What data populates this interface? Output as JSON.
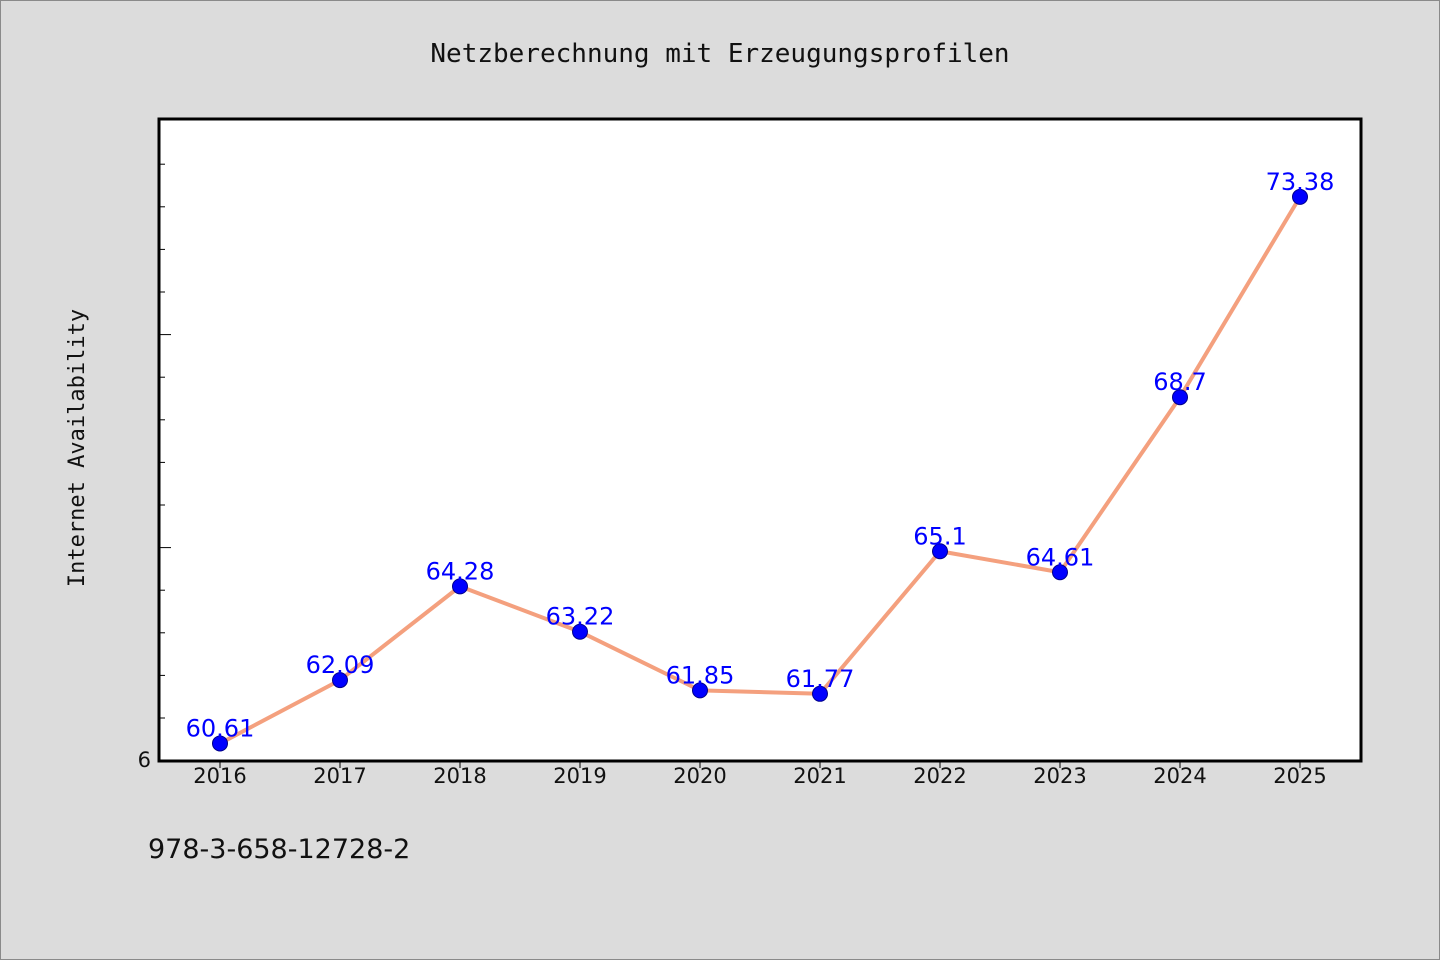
{
  "chart_data": {
    "type": "line",
    "title": "Netzberechnung mit Erzeugungsprofilen",
    "ylabel": "Internet Availability",
    "xlabel": "",
    "categories": [
      "2016",
      "2017",
      "2018",
      "2019",
      "2020",
      "2021",
      "2022",
      "2023",
      "2024",
      "2025"
    ],
    "series": [
      {
        "values": [
          60.61,
          62.09,
          64.28,
          63.22,
          61.85,
          61.77,
          65.1,
          64.61,
          68.7,
          73.38
        ],
        "data_labels": [
          "60.61",
          "62.09",
          "64.28",
          "63.22",
          "61.85",
          "61.77",
          "65.1",
          "64.61",
          "68.7",
          "73.38"
        ]
      }
    ],
    "y_tick_labels": [
      "6"
    ],
    "ylim": [
      60.2,
      75.2
    ],
    "grid": false,
    "colors": {
      "line": "#f4a07e",
      "marker": "#0000ff",
      "data_label": "#0000ff",
      "background": "#dcdcdc",
      "plot_background": "#ffffff"
    }
  },
  "footnote": "978-3-658-12728-2"
}
